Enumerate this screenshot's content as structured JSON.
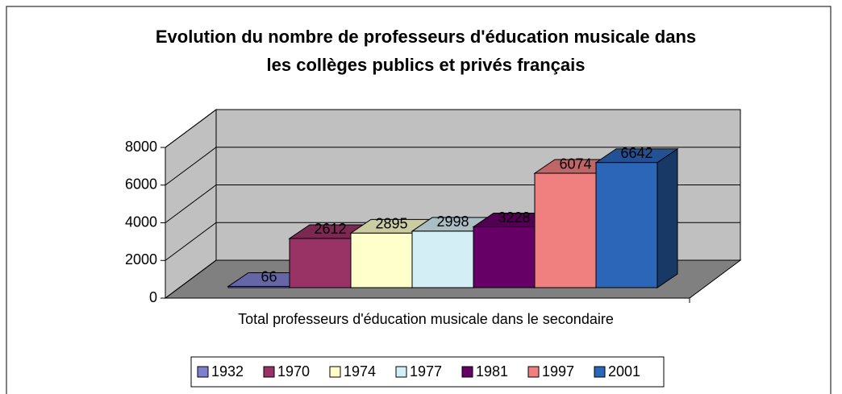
{
  "chart_data": {
    "type": "bar",
    "title": [
      "Evolution du nombre de professeurs d'éducation musicale dans",
      "les collèges  publics et privés français"
    ],
    "categories": [
      "Total professeurs d'éducation musicale dans le secondaire"
    ],
    "series": [
      {
        "name": "1932",
        "color": "#7f7fd0",
        "values": [
          66
        ]
      },
      {
        "name": "1970",
        "color": "#993366",
        "values": [
          2612
        ]
      },
      {
        "name": "1974",
        "color": "#ffffcc",
        "values": [
          2895
        ]
      },
      {
        "name": "1977",
        "color": "#d4eef5",
        "values": [
          2998
        ]
      },
      {
        "name": "1981",
        "color": "#660066",
        "values": [
          3228
        ]
      },
      {
        "name": "1997",
        "color": "#f08080",
        "values": [
          6074
        ]
      },
      {
        "name": "2001",
        "color": "#2b66b8",
        "values": [
          6642
        ]
      }
    ],
    "ylim": [
      0,
      8000
    ],
    "yticks": [
      0,
      2000,
      4000,
      6000,
      8000
    ],
    "grid": true,
    "legend": "bottom"
  }
}
